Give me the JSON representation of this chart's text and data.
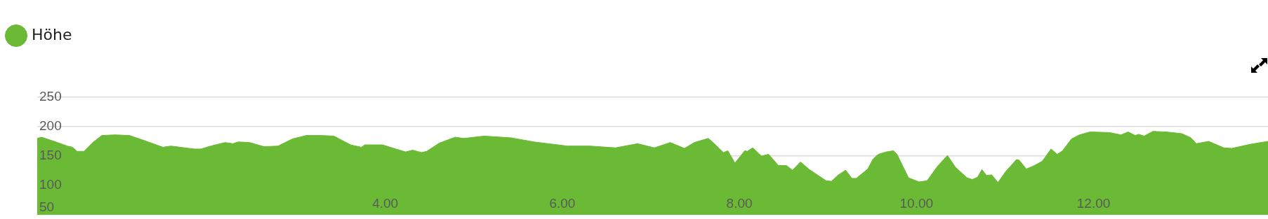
{
  "chart_data": {
    "type": "area",
    "legend": "top left",
    "grid": "y",
    "marker": "none",
    "xlim": [
      0.07,
      13.97
    ],
    "xticks": [
      {
        "value": 4,
        "label": "4.00"
      },
      {
        "value": 6,
        "label": "6.00"
      },
      {
        "value": 8,
        "label": "8.00"
      },
      {
        "value": 10,
        "label": "10.00"
      },
      {
        "value": 12,
        "label": "12.00"
      }
    ],
    "ylim": [
      50,
      250
    ],
    "yticks": [
      50,
      100,
      150,
      200,
      250
    ],
    "series": [
      {
        "name": "Höhe",
        "color": "#6aba35",
        "x": [
          0.07,
          0.12,
          0.28,
          0.41,
          0.47,
          0.52,
          0.6,
          0.69,
          0.8,
          0.95,
          1.11,
          1.23,
          1.36,
          1.49,
          1.58,
          1.84,
          1.92,
          2.03,
          2.19,
          2.28,
          2.34,
          2.47,
          2.63,
          2.79,
          2.95,
          3.11,
          3.27,
          3.42,
          3.61,
          3.73,
          3.77,
          3.97,
          4.12,
          4.23,
          4.31,
          4.41,
          4.47,
          4.61,
          4.79,
          4.89,
          5.12,
          5.42,
          5.68,
          6.06,
          6.31,
          6.6,
          6.85,
          7.04,
          7.22,
          7.38,
          7.49,
          7.58,
          7.65,
          7.71,
          7.82,
          7.87,
          7.95,
          8.06,
          8.09,
          8.15,
          8.25,
          8.33,
          8.44,
          8.53,
          8.6,
          8.69,
          8.79,
          8.88,
          8.98,
          9.04,
          9.11,
          9.2,
          9.27,
          9.32,
          9.45,
          9.51,
          9.57,
          9.66,
          9.74,
          9.78,
          9.91,
          10.03,
          10.12,
          10.24,
          10.35,
          10.44,
          10.57,
          10.63,
          10.69,
          10.74,
          10.79,
          10.85,
          10.92,
          11.01,
          11.13,
          11.16,
          11.24,
          11.32,
          11.42,
          11.52,
          11.59,
          11.65,
          11.75,
          11.84,
          11.96,
          12.18,
          12.31,
          12.39,
          12.47,
          12.51,
          12.57,
          12.67,
          12.82,
          13.0,
          13.1,
          13.16,
          13.3,
          13.47,
          13.56,
          13.77,
          13.97
        ],
        "values": [
          180,
          182,
          174,
          167,
          165,
          158,
          158,
          172,
          185,
          186,
          185,
          179,
          172,
          165,
          167,
          162,
          162,
          167,
          173,
          171,
          174,
          173,
          166,
          167,
          179,
          185,
          185,
          184,
          169,
          165,
          169,
          169,
          162,
          157,
          160,
          156,
          158,
          172,
          182,
          180,
          184,
          181,
          174,
          167,
          167,
          164,
          171,
          164,
          173,
          163,
          173,
          177,
          180,
          172,
          156,
          159,
          138,
          159,
          158,
          164,
          150,
          153,
          134,
          134,
          126,
          140,
          127,
          118,
          108,
          107,
          117,
          126,
          112,
          112,
          128,
          145,
          153,
          157,
          159,
          153,
          113,
          106,
          108,
          133,
          151,
          131,
          113,
          110,
          114,
          127,
          117,
          118,
          105,
          124,
          144,
          143,
          128,
          133,
          141,
          162,
          153,
          159,
          179,
          186,
          191,
          190,
          186,
          191,
          185,
          187,
          184,
          192,
          191,
          188,
          181,
          171,
          175,
          164,
          163,
          170,
          175
        ]
      }
    ]
  }
}
